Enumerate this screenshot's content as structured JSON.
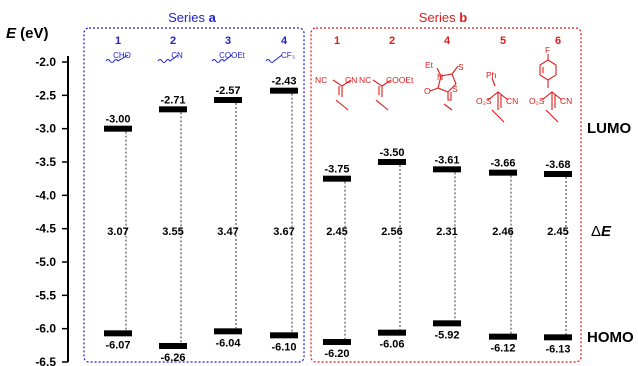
{
  "axis": {
    "title_var": "E",
    "title_unit": " (eV)",
    "ticks": [
      "-2.0",
      "-2.5",
      "-3.0",
      "-3.5",
      "-4.0",
      "-4.5",
      "-5.0",
      "-5.5",
      "-6.0",
      "-6.5"
    ]
  },
  "series_a": {
    "label_prefix": "Series ",
    "label_letter": "a",
    "color": "#1f1fd1",
    "items": [
      {
        "id": "1",
        "substituent": "CHO",
        "lumo": -3.0,
        "homo": -6.07,
        "lumo_label": "-3.00",
        "homo_label": "-6.07",
        "gap_label": "3.07"
      },
      {
        "id": "2",
        "substituent": "CN",
        "lumo": -2.71,
        "homo": -6.26,
        "lumo_label": "-2.71",
        "homo_label": "-6.26",
        "gap_label": "3.55"
      },
      {
        "id": "3",
        "substituent": "COOEt",
        "lumo": -2.57,
        "homo": -6.04,
        "lumo_label": "-2.57",
        "homo_label": "-6.04",
        "gap_label": "3.47"
      },
      {
        "id": "4",
        "substituent": "CF₃",
        "lumo": -2.43,
        "homo": -6.1,
        "lumo_label": "-2.43",
        "homo_label": "-6.10",
        "gap_label": "3.67"
      }
    ]
  },
  "series_b": {
    "label_prefix": "Series ",
    "label_letter": "b",
    "color": "#e01b1b",
    "items": [
      {
        "id": "1",
        "lumo": -3.75,
        "homo": -6.2,
        "lumo_label": "-3.75",
        "homo_label": "-6.20",
        "gap_label": "2.45"
      },
      {
        "id": "2",
        "lumo": -3.5,
        "homo": -6.06,
        "lumo_label": "-3.50",
        "homo_label": "-6.06",
        "gap_label": "2.56"
      },
      {
        "id": "4",
        "lumo": -3.61,
        "homo": -5.92,
        "lumo_label": "-3.61",
        "homo_label": "-5.92",
        "gap_label": "2.31"
      },
      {
        "id": "5",
        "lumo": -3.66,
        "homo": -6.12,
        "lumo_label": "-3.66",
        "homo_label": "-6.12",
        "gap_label": "2.46"
      },
      {
        "id": "6",
        "lumo": -3.68,
        "homo": -6.13,
        "lumo_label": "-3.68",
        "homo_label": "-6.13",
        "gap_label": "2.45"
      }
    ],
    "structure_text": {
      "nc_cn_left": "NC",
      "nc_cn_right": "CN",
      "nc_cooet_left": "NC",
      "nc_cooet_right": "COOEt",
      "rhod_et": "Et",
      "rhod_n": "N",
      "rhod_s_thione": "S",
      "rhod_s_ring": "S",
      "rhod_o": "O",
      "sulfonyl_o2s": "O₂S",
      "sulfonyl_cn": "CN",
      "phenyl_ph": "Ph",
      "fluoro_f": "F"
    }
  },
  "right_labels": {
    "lumo": "LUMO",
    "gap_delta": "Δ",
    "gap_var": "E",
    "homo": "HOMO"
  }
}
